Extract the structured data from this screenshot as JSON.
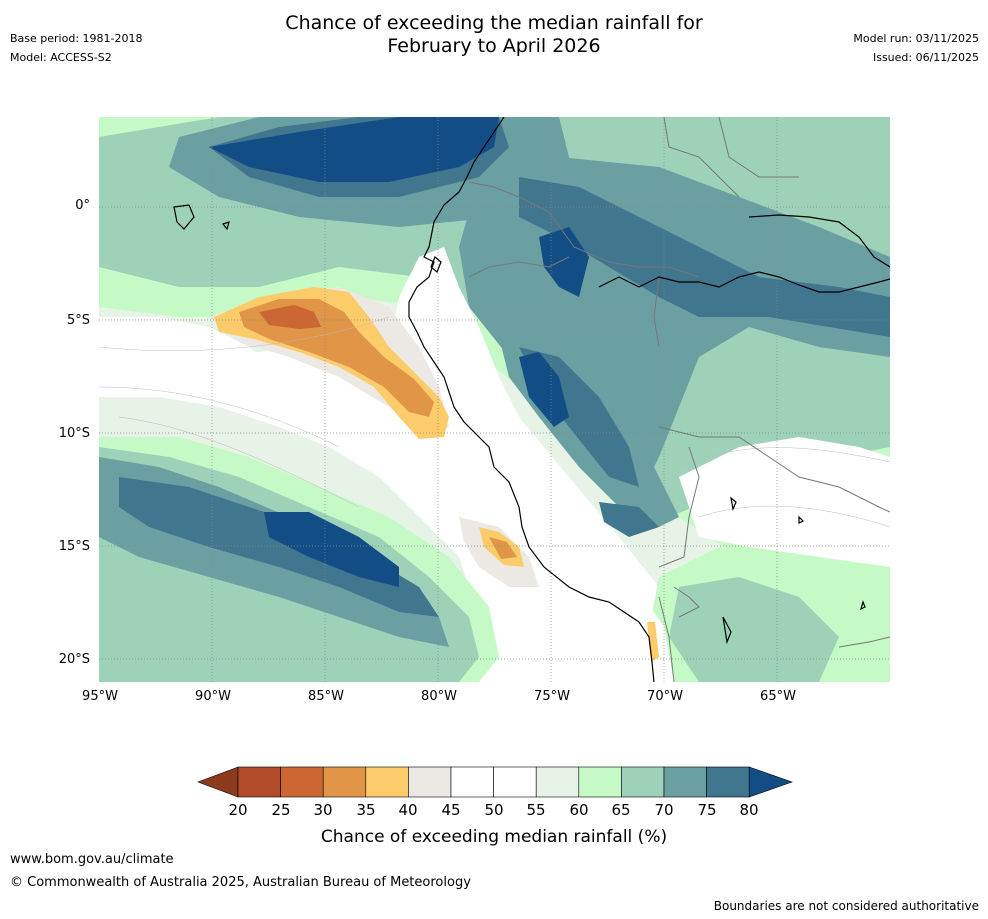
{
  "header": {
    "title_line1": "Chance of exceeding the median rainfall for",
    "title_line2": "February to April 2026",
    "base_period": "Base period: 1981-2018",
    "model": "Model: ACCESS-S2",
    "model_run": "Model run: 03/11/2025",
    "issued": "Issued: 06/11/2025"
  },
  "map": {
    "lat_ticks": [
      "0°",
      "5°S",
      "10°S",
      "15°S",
      "20°S"
    ],
    "lon_ticks": [
      "95°W",
      "90°W",
      "85°W",
      "80°W",
      "75°W",
      "70°W",
      "65°W"
    ]
  },
  "legend": {
    "title": "Chance of exceeding median rainfall (%)",
    "tick_labels": [
      "20",
      "25",
      "30",
      "35",
      "40",
      "45",
      "50",
      "55",
      "60",
      "65",
      "70",
      "75",
      "80"
    ],
    "colors": {
      "below_20": "#8c3a1e",
      "20_25": "#b24b27",
      "25_30": "#cc6633",
      "30_35": "#e09547",
      "35_40": "#fdcc6a",
      "40_45": "#ece9e5",
      "45_50": "#ffffff",
      "50_55": "#ffffff",
      "55_60": "#e6f3e6",
      "60_65": "#c5fac6",
      "65_70": "#9dd1b8",
      "70_75": "#6ba0a2",
      "75_80": "#41768f",
      "above_80": "#124e85"
    }
  },
  "footer": {
    "website": "www.bom.gov.au/climate",
    "copyright": "© Commonwealth of Australia 2025, Australian Bureau of Meteorology",
    "disclaimer": "Boundaries are not considered authoritative"
  }
}
